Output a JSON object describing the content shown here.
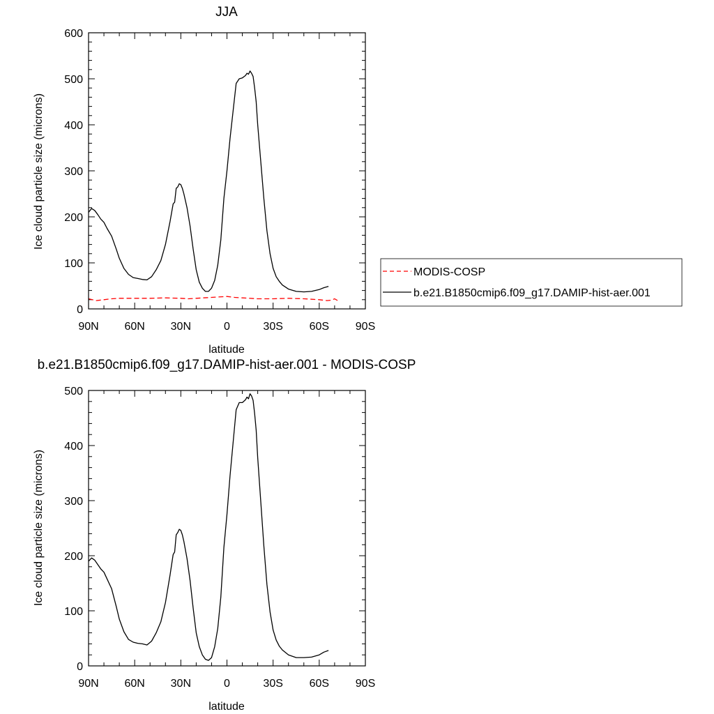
{
  "chart_data": [
    {
      "type": "line",
      "title": "JJA",
      "xlabel": "latitude",
      "ylabel": "Ice cloud particle size (microns)",
      "xlim": [
        90,
        -90
      ],
      "ylim": [
        0,
        600
      ],
      "xticks": [
        90,
        60,
        30,
        0,
        -30,
        -60,
        -90
      ],
      "xtick_labels": [
        "90N",
        "60N",
        "30N",
        "0",
        "30S",
        "60S",
        "90S"
      ],
      "yticks": [
        0,
        100,
        200,
        300,
        400,
        500,
        600
      ],
      "grid": false,
      "legend": "right",
      "series": [
        {
          "name": "MODIS-COSP",
          "color": "#ff0000",
          "dash": "dashed",
          "x": [
            90,
            85,
            80,
            75,
            70,
            60,
            50,
            40,
            30,
            25,
            20,
            10,
            0,
            -5,
            -10,
            -20,
            -30,
            -40,
            -50,
            -60,
            -65,
            -68,
            -70,
            -72,
            -73
          ],
          "y": [
            22,
            18,
            20,
            22,
            23,
            23,
            23,
            24,
            23,
            22,
            23,
            25,
            27,
            25,
            24,
            22,
            22,
            23,
            22,
            20,
            18,
            19,
            22,
            18,
            20
          ]
        },
        {
          "name": "b.e21.B1850cmip6.f09_g17.DAMIP-hist-aer.001",
          "color": "#000000",
          "dash": "solid",
          "x": [
            90,
            88,
            86,
            84,
            82,
            80,
            78,
            75,
            72,
            70,
            67,
            64,
            61,
            58,
            55,
            52,
            49,
            46,
            43,
            40,
            37,
            35,
            34,
            33,
            32,
            31,
            30,
            29,
            28,
            26,
            24,
            22,
            20,
            18,
            16,
            14,
            12,
            10,
            8,
            6,
            4,
            2,
            0,
            -2,
            -4,
            -6,
            -8,
            -10,
            -12,
            -13,
            -14,
            -15,
            -16,
            -17,
            -18,
            -19,
            -20,
            -22,
            -24,
            -26,
            -28,
            -30,
            -32,
            -34,
            -36,
            -40,
            -45,
            -50,
            -55,
            -60,
            -63,
            -66
          ],
          "y": [
            210,
            218,
            214,
            205,
            195,
            188,
            175,
            158,
            130,
            110,
            88,
            75,
            68,
            66,
            64,
            63,
            70,
            85,
            105,
            140,
            190,
            228,
            232,
            262,
            265,
            272,
            270,
            262,
            250,
            220,
            180,
            130,
            85,
            58,
            45,
            38,
            38,
            45,
            62,
            95,
            150,
            240,
            300,
            370,
            430,
            490,
            500,
            502,
            507,
            512,
            510,
            517,
            512,
            505,
            480,
            450,
            400,
            320,
            240,
            170,
            120,
            88,
            70,
            60,
            52,
            43,
            38,
            37,
            38,
            42,
            46,
            49
          ]
        }
      ]
    },
    {
      "type": "line",
      "title": "b.e21.B1850cmip6.f09_g17.DAMIP-hist-aer.001 - MODIS-COSP",
      "xlabel": "latitude",
      "ylabel": "Ice cloud particle size (microns)",
      "xlim": [
        90,
        -90
      ],
      "ylim": [
        0,
        500
      ],
      "xticks": [
        90,
        60,
        30,
        0,
        -30,
        -60,
        -90
      ],
      "xtick_labels": [
        "90N",
        "60N",
        "30N",
        "0",
        "30S",
        "60S",
        "90S"
      ],
      "yticks": [
        0,
        100,
        200,
        300,
        400,
        500
      ],
      "grid": false,
      "series": [
        {
          "color": "#000000",
          "dash": "solid",
          "x": [
            90,
            88,
            86,
            84,
            82,
            80,
            78,
            75,
            72,
            70,
            67,
            64,
            61,
            58,
            55,
            52,
            49,
            46,
            43,
            40,
            37,
            35,
            34,
            33,
            32,
            31,
            30,
            29,
            28,
            26,
            24,
            22,
            20,
            18,
            16,
            14,
            12,
            10,
            8,
            6,
            4,
            2,
            0,
            -2,
            -4,
            -6,
            -8,
            -10,
            -12,
            -13,
            -14,
            -15,
            -16,
            -17,
            -18,
            -19,
            -20,
            -22,
            -24,
            -26,
            -28,
            -30,
            -32,
            -34,
            -36,
            -40,
            -45,
            -50,
            -55,
            -60,
            -63,
            -66
          ],
          "y": [
            190,
            196,
            192,
            184,
            176,
            170,
            158,
            140,
            108,
            85,
            62,
            48,
            43,
            41,
            40,
            38,
            45,
            60,
            80,
            115,
            165,
            202,
            207,
            238,
            242,
            248,
            246,
            238,
            226,
            195,
            155,
            105,
            60,
            35,
            20,
            12,
            10,
            15,
            35,
            68,
            125,
            215,
            275,
            345,
            405,
            465,
            478,
            478,
            483,
            488,
            485,
            494,
            490,
            482,
            458,
            428,
            378,
            298,
            218,
            148,
            98,
            65,
            47,
            36,
            29,
            20,
            15,
            15,
            16,
            20,
            25,
            28
          ]
        }
      ]
    }
  ]
}
